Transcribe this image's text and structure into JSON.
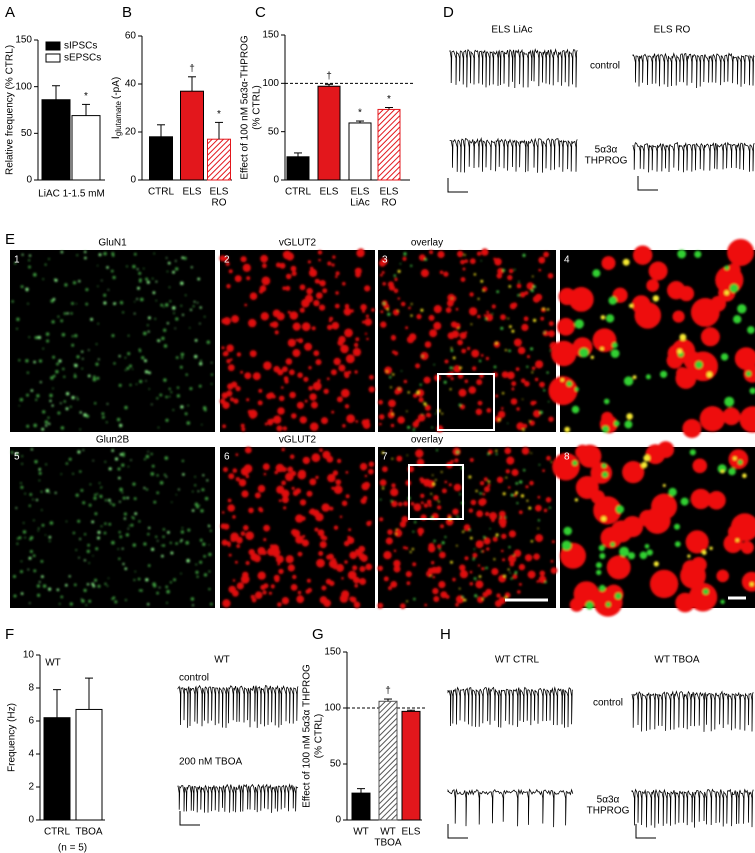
{
  "chart_data": [
    {
      "type": "bar",
      "ylabel": [
        "Relative frequency (% CTRL)"
      ],
      "categories": [
        "LiAC 1-1.5 mM"
      ],
      "series": [
        {
          "name": "sIPSCs",
          "color": "#000000",
          "values": [
            86
          ],
          "errors": [
            15
          ]
        },
        {
          "name": "sEPSCs",
          "color": "#ffffff",
          "values": [
            69
          ],
          "errors": [
            12
          ]
        }
      ],
      "annotations": [
        {
          "series": 1,
          "text": "*"
        }
      ],
      "ylim": [
        0,
        150
      ],
      "yticks": [
        0,
        50,
        100,
        150
      ],
      "legend": "top-left"
    },
    {
      "type": "bar",
      "ylabel_parts": [
        "I",
        "glutamate",
        "(-pA)"
      ],
      "categories": [
        [
          "CTRL"
        ],
        [
          "ELS"
        ],
        [
          "ELS",
          "RO"
        ]
      ],
      "values": [
        18,
        37,
        17
      ],
      "errors": [
        5,
        6,
        7
      ],
      "colors": [
        "#000000",
        "#e3171c",
        "#e3171c"
      ],
      "hatched": [
        false,
        false,
        true
      ],
      "annotations": [
        {
          "index": 1,
          "text": "†"
        },
        {
          "index": 2,
          "text": "*"
        }
      ],
      "ylim": [
        0,
        60
      ],
      "yticks": [
        0,
        20,
        40,
        60
      ]
    },
    {
      "type": "bar",
      "ylabel": [
        "Effect of 100 nM 5α3α-THPROG",
        "(% CTRL)"
      ],
      "categories": [
        [
          "CTRL"
        ],
        [
          "ELS"
        ],
        [
          "ELS",
          "LiAc"
        ],
        [
          "ELS",
          "RO"
        ]
      ],
      "values": [
        24,
        97,
        59,
        73
      ],
      "errors": [
        4,
        2,
        2,
        2
      ],
      "colors": [
        "#000000",
        "#e3171c",
        "#ffffff",
        "#e3171c"
      ],
      "hatched": [
        false,
        false,
        false,
        true
      ],
      "annotations": [
        {
          "index": 1,
          "text": "†"
        },
        {
          "index": 2,
          "text": "*"
        },
        {
          "index": 3,
          "text": "*"
        }
      ],
      "reference_line": 100,
      "ylim": [
        0,
        150
      ],
      "yticks": [
        0,
        50,
        100,
        150
      ]
    },
    {
      "type": "bar",
      "title": "WT",
      "note": "(n = 5)",
      "ylabel": [
        "Frequency (Hz)"
      ],
      "categories": [
        [
          "CTRL"
        ],
        [
          "TBOA"
        ]
      ],
      "values": [
        6.2,
        6.7
      ],
      "errors": [
        1.7,
        1.9
      ],
      "colors": [
        "#000000",
        "#ffffff"
      ],
      "hatched": [
        false,
        false
      ],
      "ylim": [
        0,
        10
      ],
      "yticks": [
        0,
        2,
        4,
        6,
        8,
        10
      ]
    },
    {
      "type": "bar",
      "ylabel": [
        "Effect of 100 nM 5α3α THPROG",
        "(% CTRL)"
      ],
      "categories": [
        [
          "WT"
        ],
        [
          "WT",
          "TBOA"
        ],
        [
          "ELS"
        ]
      ],
      "values": [
        24,
        106,
        97
      ],
      "errors": [
        4,
        2,
        1
      ],
      "colors": [
        "#000000",
        "#555555",
        "#e3171c"
      ],
      "hatched": [
        false,
        true,
        false
      ],
      "annotations": [
        {
          "index": 1,
          "text": "†"
        }
      ],
      "reference_line": 100,
      "ylim": [
        0,
        150
      ],
      "yticks": [
        0,
        50,
        100,
        150
      ]
    }
  ],
  "figure": {
    "panel_labels": [
      "A",
      "B",
      "C",
      "D",
      "E",
      "F",
      "G",
      "H"
    ],
    "D": {
      "titles": [
        "ELS LiAc",
        "ELS RO"
      ],
      "control": "control",
      "drug": [
        "5α3α",
        "THPROG"
      ]
    },
    "E": {
      "top_labels": [
        "GluN1",
        "vGLUT2",
        "overlay"
      ],
      "bottom_labels": [
        "Glun2B",
        "vGLUT2",
        "overlay"
      ],
      "numbers": [
        "1",
        "2",
        "3",
        "4",
        "5",
        "6",
        "7",
        "8"
      ]
    },
    "F": {
      "title": "WT",
      "labels": [
        "control",
        "200 nM TBOA"
      ]
    },
    "H": {
      "titles": [
        "WT CTRL",
        "WT TBOA"
      ],
      "control": "control",
      "drug": [
        "5α3α",
        "THPROG"
      ]
    }
  }
}
